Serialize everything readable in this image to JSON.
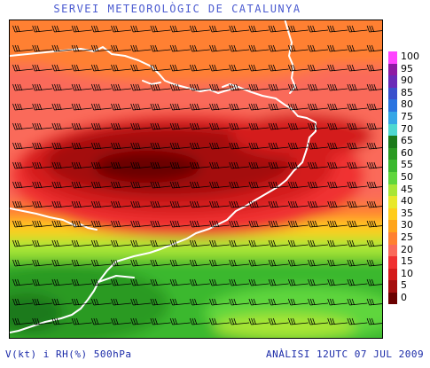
{
  "header": {
    "title": "SERVEI METEOROLÒGIC DE CATALUNYA"
  },
  "footer": {
    "variables": "V(kt) i RH(%) 500hPa",
    "analysis": "ANÀLISI 12UTC 07 JUL 2009"
  },
  "legend": {
    "unit": "RH (%)",
    "items": [
      {
        "label": "100",
        "color": "#ff44ff"
      },
      {
        "label": "95",
        "color": "#8e1aa4"
      },
      {
        "label": "90",
        "color": "#6a2ab8"
      },
      {
        "label": "85",
        "color": "#3a50cc"
      },
      {
        "label": "80",
        "color": "#2a74e0"
      },
      {
        "label": "75",
        "color": "#35a6e6"
      },
      {
        "label": "70",
        "color": "#4ed8d0"
      },
      {
        "label": "65",
        "color": "#1a7a1a"
      },
      {
        "label": "60",
        "color": "#2a9a22"
      },
      {
        "label": "55",
        "color": "#3ab82e"
      },
      {
        "label": "50",
        "color": "#5fd63c"
      },
      {
        "label": "45",
        "color": "#a8e636"
      },
      {
        "label": "40",
        "color": "#e8e82a"
      },
      {
        "label": "35",
        "color": "#ffcc1a"
      },
      {
        "label": "30",
        "color": "#ffa41a"
      },
      {
        "label": "25",
        "color": "#ff8030"
      },
      {
        "label": "20",
        "color": "#fa6a5a"
      },
      {
        "label": "15",
        "color": "#f03030"
      },
      {
        "label": "10",
        "color": "#d41a1a"
      },
      {
        "label": "5",
        "color": "#a40e0e"
      },
      {
        "label": "0",
        "color": "#6a0000"
      }
    ]
  },
  "map": {
    "layers": [
      "rh-fill",
      "coastline",
      "wind-barbs"
    ],
    "coastline_color": "#ffffff",
    "barb_color": "#000000"
  }
}
